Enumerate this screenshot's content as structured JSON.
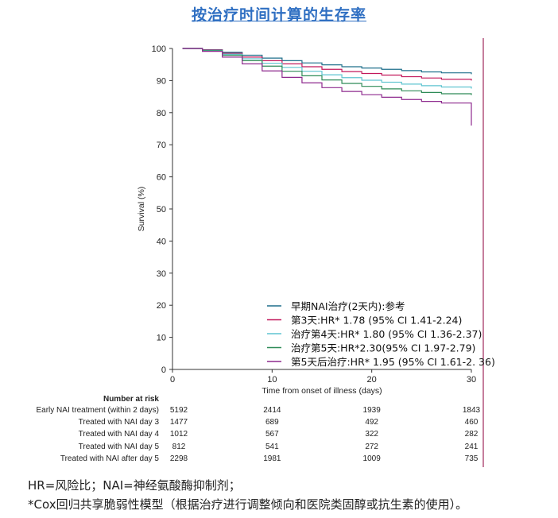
{
  "title": "按治疗时间计算的生存率",
  "chart_data": {
    "type": "line",
    "ylabel": "Survival (%)",
    "xlabel": "Time from onset of illness (days)",
    "xlim": [
      0,
      30
    ],
    "ylim": [
      0,
      100
    ],
    "xticks": [
      0,
      10,
      20,
      30
    ],
    "yticks": [
      0,
      10,
      20,
      30,
      40,
      50,
      60,
      70,
      80,
      90,
      100
    ],
    "series": [
      {
        "name": "早期NAI治疗(2天内):参考",
        "color": "#1f6f8b",
        "x": [
          1,
          3,
          5,
          7,
          9,
          11,
          13,
          15,
          17,
          19,
          21,
          23,
          25,
          27,
          30
        ],
        "y": [
          100,
          99.6,
          98.8,
          97.9,
          97.0,
          96.2,
          95.5,
          94.9,
          94.3,
          93.9,
          93.5,
          93.1,
          92.7,
          92.4,
          92.0
        ]
      },
      {
        "name": "第3天:HR* 1.78 (95% CI 1.41-2.24)",
        "color": "#c2185b",
        "x": [
          1,
          3,
          5,
          7,
          9,
          11,
          13,
          15,
          17,
          19,
          21,
          23,
          25,
          27,
          30
        ],
        "y": [
          100,
          99.5,
          98.5,
          97.3,
          96.2,
          95.2,
          94.3,
          93.5,
          92.8,
          92.2,
          91.7,
          91.2,
          90.8,
          90.4,
          90.0
        ]
      },
      {
        "name": "治疗第4天:HR* 1.80 (95% CI 1.36-2.37)",
        "color": "#5fc4d0",
        "x": [
          1,
          3,
          5,
          7,
          9,
          11,
          13,
          15,
          17,
          19,
          21,
          23,
          25,
          27,
          30
        ],
        "y": [
          100,
          99.4,
          98.2,
          96.8,
          95.4,
          94.1,
          92.9,
          91.8,
          90.9,
          90.1,
          89.5,
          88.9,
          88.4,
          88.0,
          87.5
        ]
      },
      {
        "name": "治疗第5天:HR*2.30(95% CI 1.97-2.79)",
        "color": "#2e8b57",
        "x": [
          1,
          3,
          5,
          7,
          9,
          11,
          13,
          15,
          17,
          19,
          21,
          23,
          25,
          27,
          30
        ],
        "y": [
          100,
          99.3,
          97.9,
          96.2,
          94.5,
          92.9,
          91.5,
          90.2,
          89.1,
          88.2,
          87.4,
          86.8,
          86.3,
          85.9,
          85.5
        ]
      },
      {
        "name": "第5天后治疗:HR* 1.95 (95% CI 1.61-2. 36)",
        "color": "#8e2a8e",
        "x": [
          1,
          3,
          5,
          7,
          9,
          11,
          13,
          15,
          17,
          19,
          21,
          23,
          25,
          27,
          30,
          30
        ],
        "y": [
          100,
          99.1,
          97.3,
          95.2,
          93.0,
          91.0,
          89.3,
          87.8,
          86.6,
          85.6,
          84.8,
          84.1,
          83.5,
          83.0,
          82.5,
          76.0
        ]
      }
    ],
    "grid": false,
    "legend_position": "bottom-right"
  },
  "risk_table": {
    "title": "Number at risk",
    "columns_x": [
      0,
      10,
      20,
      30
    ],
    "rows": [
      {
        "label": "Early NAI treatment (within 2 days)",
        "values": [
          "5192",
          "2414",
          "1939",
          "1843"
        ]
      },
      {
        "label": "Treated with NAI day 3",
        "values": [
          "1477",
          "689",
          "492",
          "460"
        ]
      },
      {
        "label": "Treated with NAI day 4",
        "values": [
          "1012",
          "567",
          "322",
          "282"
        ]
      },
      {
        "label": "Treated with NAI day 5",
        "values": [
          "812",
          "541",
          "272",
          "241"
        ]
      },
      {
        "label": "Treated with NAI after day 5",
        "values": [
          "2298",
          "1981",
          "1009",
          "735"
        ]
      }
    ]
  },
  "footnotes": [
    "HR=风险比；NAI=神经氨酸酶抑制剂；",
    "*Cox回归共享脆弱性模型（根据治疗进行调整倾向和医院类固醇或抗生素的使用）。"
  ],
  "colors": {
    "title": "#2f6fc2",
    "marker_line": "#a0285c"
  }
}
